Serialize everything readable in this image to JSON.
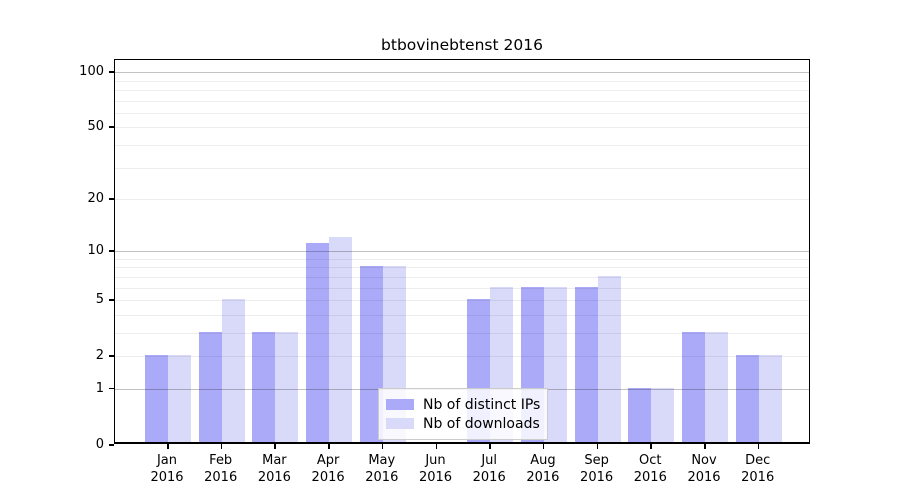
{
  "chart_data": {
    "type": "bar",
    "title": "btbovinebtenst 2016",
    "x_categories_line1": [
      "Jan",
      "Feb",
      "Mar",
      "Apr",
      "May",
      "Jun",
      "Jul",
      "Aug",
      "Sep",
      "Oct",
      "Nov",
      "Dec"
    ],
    "x_categories_line2": [
      "2016",
      "2016",
      "2016",
      "2016",
      "2016",
      "2016",
      "2016",
      "2016",
      "2016",
      "2016",
      "2016",
      "2016"
    ],
    "series": [
      {
        "name": "Nb of distinct IPs",
        "color": "#aaaaf8",
        "values": [
          2,
          3,
          3,
          11,
          8,
          0,
          5,
          6,
          6,
          1,
          3,
          2
        ]
      },
      {
        "name": "Nb of downloads",
        "color": "#d9d9fa",
        "values": [
          2,
          5,
          3,
          12,
          8,
          0,
          6,
          6,
          7,
          1,
          3,
          2
        ]
      }
    ],
    "yscale": "log10(1+x)",
    "ylim": [
      0,
      115
    ],
    "ytick_labels": [
      "0",
      "1",
      "2",
      "5",
      "10",
      "20",
      "50",
      "100"
    ],
    "ytick_values": [
      0,
      1,
      2,
      5,
      10,
      20,
      50,
      100
    ],
    "grid_minor_values": [
      2,
      3,
      4,
      5,
      6,
      7,
      8,
      9,
      20,
      30,
      40,
      50,
      60,
      70,
      80,
      90
    ],
    "grid_major_values": [
      1,
      10,
      100
    ],
    "grid_on": true,
    "legend_position": "lower center",
    "xlabel": "",
    "ylabel": ""
  },
  "colors": {
    "bar_distinct_ips": "#aaaaf8",
    "bar_downloads": "#d9d9fa",
    "axis": "#000000",
    "grid_major": "#c2c2c2",
    "grid_minor": "#ededed",
    "legend_border": "#cccccc",
    "background": "#ffffff"
  }
}
